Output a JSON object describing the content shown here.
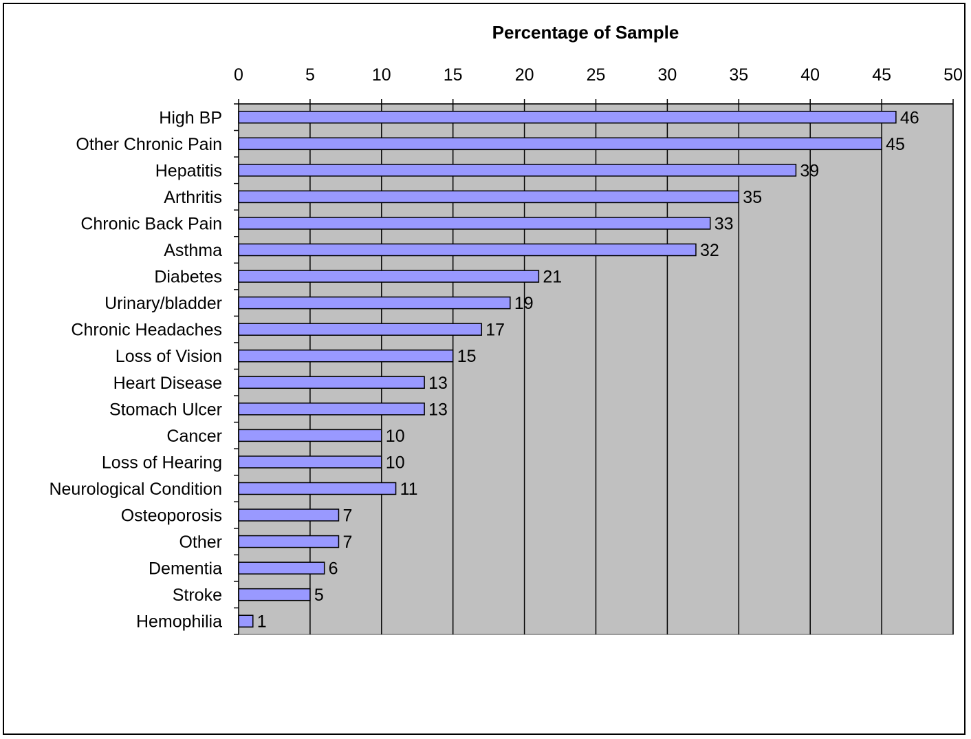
{
  "chart_data": {
    "type": "bar",
    "orientation": "horizontal",
    "title": "Percentage of Sample",
    "xlabel": "",
    "ylabel": "",
    "xlim": [
      0,
      50
    ],
    "x_ticks": [
      "0",
      "5",
      "10",
      "15",
      "20",
      "25",
      "30",
      "35",
      "40",
      "45",
      "50"
    ],
    "x_axis_position": "top",
    "grid": true,
    "legend": "none",
    "categories": [
      "High BP",
      "Other Chronic Pain",
      "Hepatitis",
      "Arthritis",
      "Chronic Back Pain",
      "Asthma",
      "Diabetes",
      "Urinary/bladder",
      "Chronic Headaches",
      "Loss of Vision",
      "Heart Disease",
      "Stomach Ulcer",
      "Cancer",
      "Loss of Hearing",
      "Neurological Condition",
      "Osteoporosis",
      "Other",
      "Dementia",
      "Stroke",
      "Hemophilia"
    ],
    "values": [
      46,
      45,
      39,
      35,
      33,
      32,
      21,
      19,
      17,
      15,
      13,
      13,
      10,
      10,
      11,
      7,
      7,
      6,
      5,
      1
    ],
    "data_labels": [
      "46",
      "45",
      "39",
      "35",
      "33",
      "32",
      "21",
      "19",
      "17",
      "15",
      "13",
      "13",
      "10",
      "10",
      "11",
      "7",
      "7",
      "6",
      "5",
      "1"
    ],
    "colors": {
      "bar_fill": "#9999ff",
      "bar_stroke": "#000000",
      "plot_background": "#c0c0c0",
      "gridline": "#000000"
    }
  }
}
